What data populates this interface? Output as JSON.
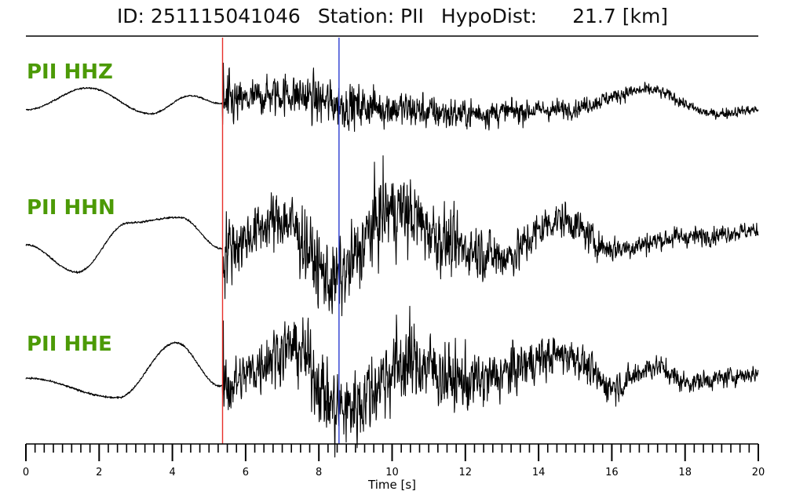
{
  "header": {
    "id_text": "ID: 251115041046",
    "station_text": "Station: PII",
    "hypo_label": "HypoDist:",
    "hypo_value": "21.7 [km]"
  },
  "chart_data": {
    "type": "line",
    "title": "ID: 251115041046   Station: PII   HypoDist:    21.7 [km]",
    "xlabel": "Time [s]",
    "ylabel": "",
    "xlim": [
      0,
      20
    ],
    "x_major_ticks": [
      0,
      2,
      4,
      6,
      8,
      10,
      12,
      14,
      16,
      18,
      20
    ],
    "x_minor_step": 0.25,
    "grid": false,
    "legend": "none",
    "picks": [
      {
        "phase": "P",
        "time": 5.37,
        "color": "#e8302a"
      },
      {
        "phase": "S",
        "time": 8.55,
        "color": "#2b3bd0"
      }
    ],
    "series": [
      {
        "name": "PII HHZ",
        "label_color": "#4c9a06",
        "coda_amp": [
          0.1,
          0.16,
          0.21,
          0.28,
          0.38,
          0.31,
          0.24,
          0.17,
          0.12,
          0.09,
          0.07
        ],
        "low_freq": [
          [
            0,
            0
          ],
          [
            1.7,
            0.28
          ],
          [
            3.4,
            -0.05
          ],
          [
            4.5,
            0.18
          ],
          [
            5.3,
            0.08
          ],
          [
            7,
            0.2
          ],
          [
            9,
            0.05
          ],
          [
            12,
            -0.05
          ],
          [
            14.5,
            0
          ],
          [
            17,
            0.25
          ],
          [
            18.8,
            -0.05
          ],
          [
            20,
            0
          ]
        ],
        "pre_event_noise": 0.01
      },
      {
        "name": "PII HHN",
        "label_color": "#4c9a06",
        "coda_amp": [
          0.1,
          0.18,
          0.28,
          0.4,
          0.6,
          0.65,
          0.48,
          0.32,
          0.22,
          0.16,
          0.13
        ],
        "low_freq": [
          [
            0,
            0
          ],
          [
            1.4,
            -0.35
          ],
          [
            2.8,
            0.28
          ],
          [
            4.2,
            0.35
          ],
          [
            5.35,
            -0.05
          ],
          [
            7,
            0.32
          ],
          [
            8.4,
            -0.45
          ],
          [
            10,
            0.45
          ],
          [
            12,
            -0.05
          ],
          [
            13,
            -0.15
          ],
          [
            14.6,
            0.32
          ],
          [
            16,
            -0.05
          ],
          [
            18,
            0.1
          ],
          [
            20,
            0.18
          ]
        ],
        "pre_event_noise": 0.012
      },
      {
        "name": "PII HHE",
        "label_color": "#4c9a06",
        "coda_amp": [
          0.1,
          0.18,
          0.28,
          0.4,
          0.62,
          0.68,
          0.5,
          0.34,
          0.24,
          0.17,
          0.14
        ],
        "low_freq": [
          [
            0,
            0
          ],
          [
            2.5,
            -0.25
          ],
          [
            4.1,
            0.45
          ],
          [
            5.3,
            -0.1
          ],
          [
            7.3,
            0.38
          ],
          [
            8.6,
            -0.4
          ],
          [
            10.5,
            0.2
          ],
          [
            12,
            -0.05
          ],
          [
            14.8,
            0.3
          ],
          [
            16,
            -0.1
          ],
          [
            17.2,
            0.15
          ],
          [
            18,
            -0.05
          ],
          [
            20,
            0.05
          ]
        ],
        "pre_event_noise": 0.012
      }
    ]
  }
}
